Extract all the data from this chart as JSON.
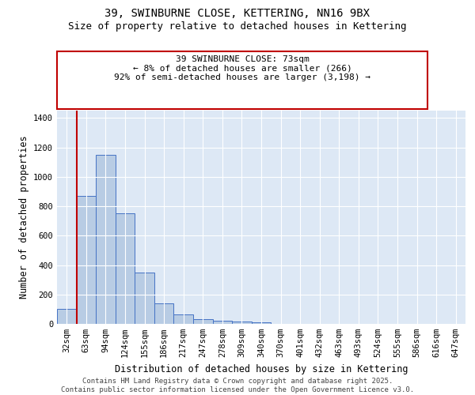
{
  "title": "39, SWINBURNE CLOSE, KETTERING, NN16 9BX",
  "subtitle": "Size of property relative to detached houses in Kettering",
  "xlabel": "Distribution of detached houses by size in Kettering",
  "ylabel": "Number of detached properties",
  "categories": [
    "32sqm",
    "63sqm",
    "94sqm",
    "124sqm",
    "155sqm",
    "186sqm",
    "217sqm",
    "247sqm",
    "278sqm",
    "309sqm",
    "340sqm",
    "370sqm",
    "401sqm",
    "432sqm",
    "463sqm",
    "493sqm",
    "524sqm",
    "555sqm",
    "586sqm",
    "616sqm",
    "647sqm"
  ],
  "values": [
    100,
    870,
    1150,
    750,
    350,
    140,
    62,
    33,
    22,
    14,
    13,
    0,
    0,
    0,
    0,
    0,
    0,
    0,
    0,
    0,
    0
  ],
  "bar_color": "#b8cce4",
  "bar_edge_color": "#4472c4",
  "vline_color": "#c00000",
  "annotation_text": "39 SWINBURNE CLOSE: 73sqm\n← 8% of detached houses are smaller (266)\n92% of semi-detached houses are larger (3,198) →",
  "annotation_box_color": "#ffffff",
  "annotation_border_color": "#c00000",
  "ylim": [
    0,
    1450
  ],
  "yticks": [
    0,
    200,
    400,
    600,
    800,
    1000,
    1200,
    1400
  ],
  "footer_text": "Contains HM Land Registry data © Crown copyright and database right 2025.\nContains public sector information licensed under the Open Government Licence v3.0.",
  "plot_bg_color": "#dde8f5",
  "fig_bg_color": "#ffffff",
  "title_fontsize": 10,
  "subtitle_fontsize": 9,
  "axis_label_fontsize": 8.5,
  "tick_fontsize": 7.5,
  "annotation_fontsize": 8,
  "footer_fontsize": 6.5
}
